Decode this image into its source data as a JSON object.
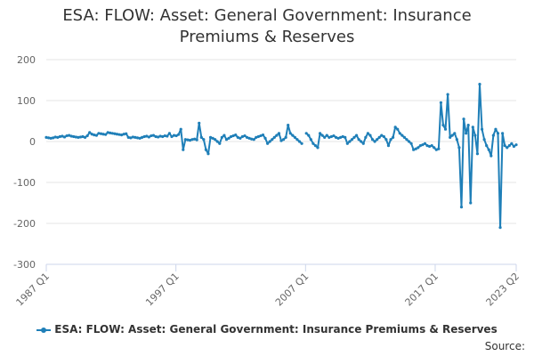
{
  "chart_data": {
    "type": "line",
    "title_lines": [
      "ESA: FLOW: Asset: General Government: Insurance",
      "Premiums & Reserves"
    ],
    "xlabel": "",
    "ylabel": "",
    "ylim": [
      -300,
      200
    ],
    "y_ticks": [
      "200",
      "100",
      "0",
      "-100",
      "-200",
      "-300"
    ],
    "x_range": [
      "1987 Q1",
      "2023 Q2"
    ],
    "x_ticks": [
      "1987 Q1",
      "1997 Q1",
      "2007 Q1",
      "2017 Q1",
      "2023 Q2"
    ],
    "grid": true,
    "legend_position": "bottom",
    "series_color": "#1f7fb8",
    "series": [
      {
        "name": "ESA: FLOW: Asset: General Government: Insurance Premiums & Reserves",
        "values": [
          10,
          9,
          8,
          9,
          11,
          10,
          12,
          13,
          11,
          14,
          15,
          13,
          12,
          11,
          10,
          11,
          12,
          10,
          14,
          22,
          18,
          16,
          15,
          20,
          19,
          18,
          17,
          22,
          21,
          20,
          19,
          18,
          17,
          16,
          18,
          19,
          10,
          9,
          11,
          10,
          9,
          8,
          10,
          12,
          13,
          11,
          14,
          15,
          12,
          11,
          13,
          12,
          14,
          13,
          20,
          12,
          15,
          14,
          17,
          30,
          -20,
          5,
          4,
          3,
          5,
          6,
          4,
          45,
          10,
          5,
          -20,
          -30,
          10,
          8,
          5,
          0,
          -5,
          10,
          15,
          5,
          8,
          12,
          14,
          16,
          10,
          8,
          12,
          14,
          10,
          8,
          6,
          5,
          10,
          12,
          14,
          16,
          8,
          -5,
          0,
          5,
          10,
          15,
          20,
          2,
          5,
          10,
          40,
          20,
          15,
          10,
          5,
          0,
          -5,
          null,
          20,
          15,
          5,
          -5,
          -10,
          -15,
          20,
          15,
          10,
          15,
          10,
          12,
          14,
          10,
          8,
          10,
          12,
          10,
          -5,
          0,
          5,
          10,
          15,
          5,
          0,
          -5,
          10,
          20,
          15,
          5,
          0,
          5,
          10,
          15,
          12,
          5,
          -10,
          5,
          10,
          35,
          30,
          20,
          15,
          10,
          5,
          0,
          -5,
          -20,
          -18,
          -15,
          -10,
          -8,
          -5,
          -10,
          -12,
          -10,
          -15,
          -20,
          -18,
          95,
          40,
          30,
          115,
          10,
          15,
          20,
          5,
          -15,
          -160,
          55,
          20,
          40,
          -150,
          35,
          15,
          -30,
          140,
          30,
          5,
          -10,
          -20,
          -35,
          15,
          30,
          20,
          -210,
          20,
          -10,
          -15,
          -10,
          -5,
          -12,
          -8
        ]
      }
    ]
  },
  "legend_label": "ESA: FLOW: Asset: General Government: Insurance Premiums & Reserves",
  "source_label": "Source:"
}
